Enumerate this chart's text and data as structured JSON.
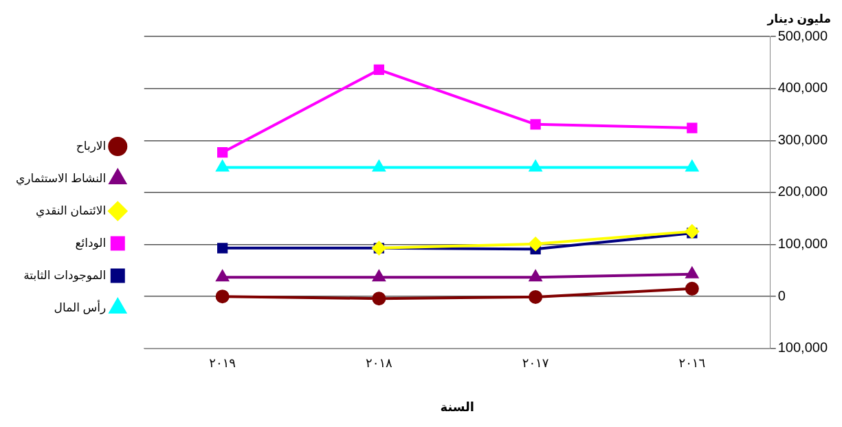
{
  "chart_data": {
    "type": "line",
    "ylabel": "مليون دينار",
    "xlabel": "السنة",
    "categories": [
      "٢٠١٩",
      "٢٠١٨",
      "٢٠١٧",
      "٢٠١٦"
    ],
    "series": [
      {
        "name": "رأس المال",
        "color": "#00ffff",
        "marker": "triangle",
        "values": [
          248000,
          248000,
          248000,
          248000
        ]
      },
      {
        "name": "الموجودات الثابتة",
        "color": "#000080",
        "marker": "square",
        "values": [
          93000,
          93000,
          91000,
          122000
        ]
      },
      {
        "name": "الودائع",
        "color": "#ff00ff",
        "marker": "square",
        "values": [
          277000,
          436000,
          331000,
          324000
        ]
      },
      {
        "name": "الائتمان النقدي",
        "color": "#ffff00",
        "marker": "diamond",
        "values": [
          null,
          93000,
          101000,
          125000
        ]
      },
      {
        "name": "النشاط الاستثماري",
        "color": "#800080",
        "marker": "triangle",
        "values": [
          37000,
          37000,
          37000,
          43000
        ]
      },
      {
        "name": "الارباح",
        "color": "#800000",
        "marker": "circle",
        "values": [
          0,
          -4000,
          -1000,
          15000
        ]
      }
    ],
    "ylim": [
      -100000,
      500000
    ],
    "yticks": [
      {
        "value": -100000,
        "label": "100,000"
      },
      0,
      {
        "value": 100000,
        "label": "100,000"
      },
      {
        "value": 200000,
        "label": "200,000"
      },
      {
        "value": 300000,
        "label": "300,000"
      },
      {
        "value": 400000,
        "label": "400,000"
      },
      {
        "value": 500000,
        "label": "500,000"
      }
    ],
    "grid": "y",
    "legend": "left"
  }
}
